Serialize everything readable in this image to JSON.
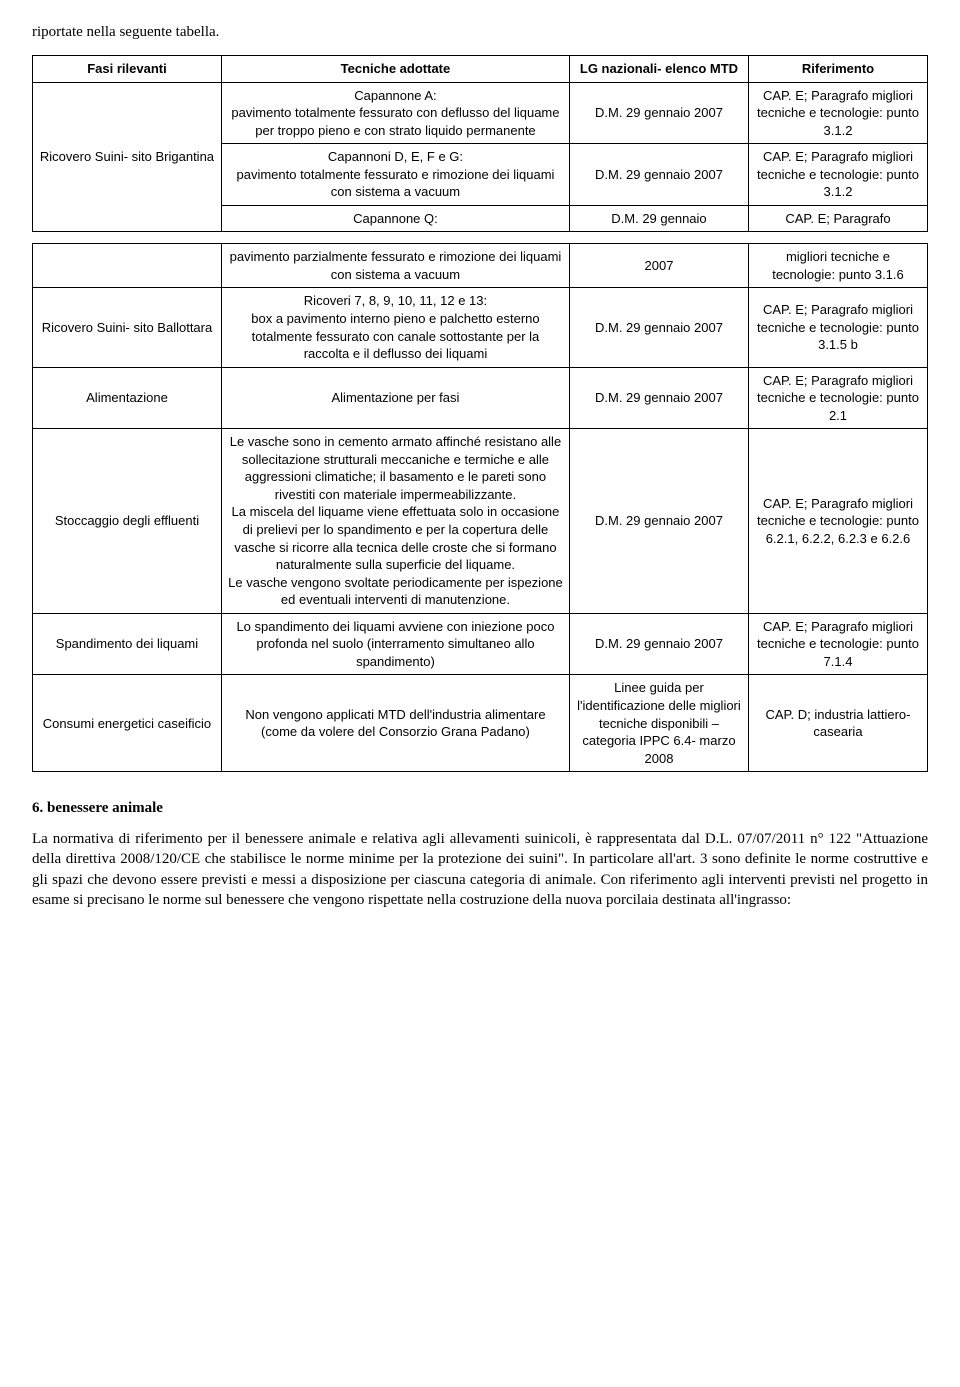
{
  "intro": "riportate nella seguente tabella.",
  "headers": {
    "fase": "Fasi rilevanti",
    "tecniche": "Tecniche adottate",
    "lg": "LG nazionali- elenco MTD",
    "rif": "Riferimento"
  },
  "rows": [
    {
      "fase": "Ricovero Suini- sito Brigantina",
      "tec": "Capannone A:\npavimento totalmente fessurato con deflusso del liquame per troppo pieno e con strato liquido permanente",
      "lg": "D.M. 29 gennaio 2007",
      "rif": "CAP. E; Paragrafo migliori tecniche e tecnologie: punto 3.1.2",
      "faseRowspan": 3
    },
    {
      "tec": "Capannoni D, E, F e G:\npavimento totalmente fessurato e rimozione dei liquami con sistema a vacuum",
      "lg": "D.M. 29 gennaio 2007",
      "rif": "CAP. E; Paragrafo migliori tecniche e tecnologie: punto 3.1.2"
    },
    {
      "tec": "Capannone Q:",
      "lg": "D.M. 29 gennaio",
      "rif": "CAP. E; Paragrafo",
      "splitBottom": true
    },
    {
      "tec": "pavimento parzialmente fessurato e rimozione dei liquami con sistema a vacuum",
      "lg": "2007",
      "rif": "migliori tecniche e tecnologie: punto 3.1.6",
      "splitTop": true
    },
    {
      "fase": "Ricovero Suini- sito Ballottara",
      "tec": "Ricoveri 7, 8, 9, 10, 11, 12 e 13:\nbox a pavimento interno pieno e palchetto esterno totalmente fessurato con canale sottostante per la raccolta e il deflusso dei liquami",
      "lg": "D.M. 29 gennaio 2007",
      "rif": "CAP. E; Paragrafo migliori tecniche e tecnologie: punto 3.1.5 b"
    },
    {
      "fase": "Alimentazione",
      "tec": "Alimentazione per fasi",
      "lg": "D.M. 29 gennaio 2007",
      "rif": "CAP. E; Paragrafo migliori tecniche e tecnologie: punto 2.1"
    },
    {
      "fase": "Stoccaggio degli effluenti",
      "tec": "Le vasche sono in cemento armato affinché resistano alle sollecitazione strutturali meccaniche e termiche e alle aggressioni climatiche; il basamento e le pareti sono rivestiti con materiale impermeabilizzante.\nLa miscela del liquame viene effettuata solo in occasione di prelievi per lo spandimento e per la copertura delle vasche si ricorre alla tecnica delle croste che si formano naturalmente sulla superficie del liquame.\nLe vasche vengono svoltate periodicamente per ispezione ed eventuali interventi di manutenzione.",
      "lg": "D.M. 29 gennaio 2007",
      "rif": "CAP. E; Paragrafo migliori tecniche e tecnologie: punto 6.2.1, 6.2.2, 6.2.3 e 6.2.6"
    },
    {
      "fase": "Spandimento dei liquami",
      "tec": "Lo spandimento dei liquami avviene con iniezione poco profonda nel suolo (interramento simultaneo allo spandimento)",
      "lg": "D.M. 29 gennaio 2007",
      "rif": "CAP. E; Paragrafo migliori tecniche e tecnologie: punto 7.1.4"
    },
    {
      "fase": "Consumi energetici caseificio",
      "tec": "Non vengono applicati MTD dell'industria alimentare (come da volere del Consorzio Grana Padano)",
      "lg": "Linee guida per l'identificazione delle migliori tecniche disponibili – categoria IPPC 6.4- marzo 2008",
      "rif": "CAP. D; industria lattiero- casearia"
    }
  ],
  "sectionHeading": "6. benessere animale",
  "bodyText": "La normativa di riferimento per il benessere animale e relativa agli allevamenti suinicoli, è rappresentata dal D.L. 07/07/2011 n° 122 \"Attuazione della direttiva 2008/120/CE che stabilisce le norme minime per la protezione dei suini\". In particolare all'art. 3 sono definite le norme costruttive e gli spazi che devono essere previsti e messi a disposizione per ciascuna categoria di animale. Con riferimento agli interventi previsti nel progetto in esame si precisano le norme sul benessere che vengono rispettate nella costruzione della nuova porcilaia destinata all'ingrasso:"
}
